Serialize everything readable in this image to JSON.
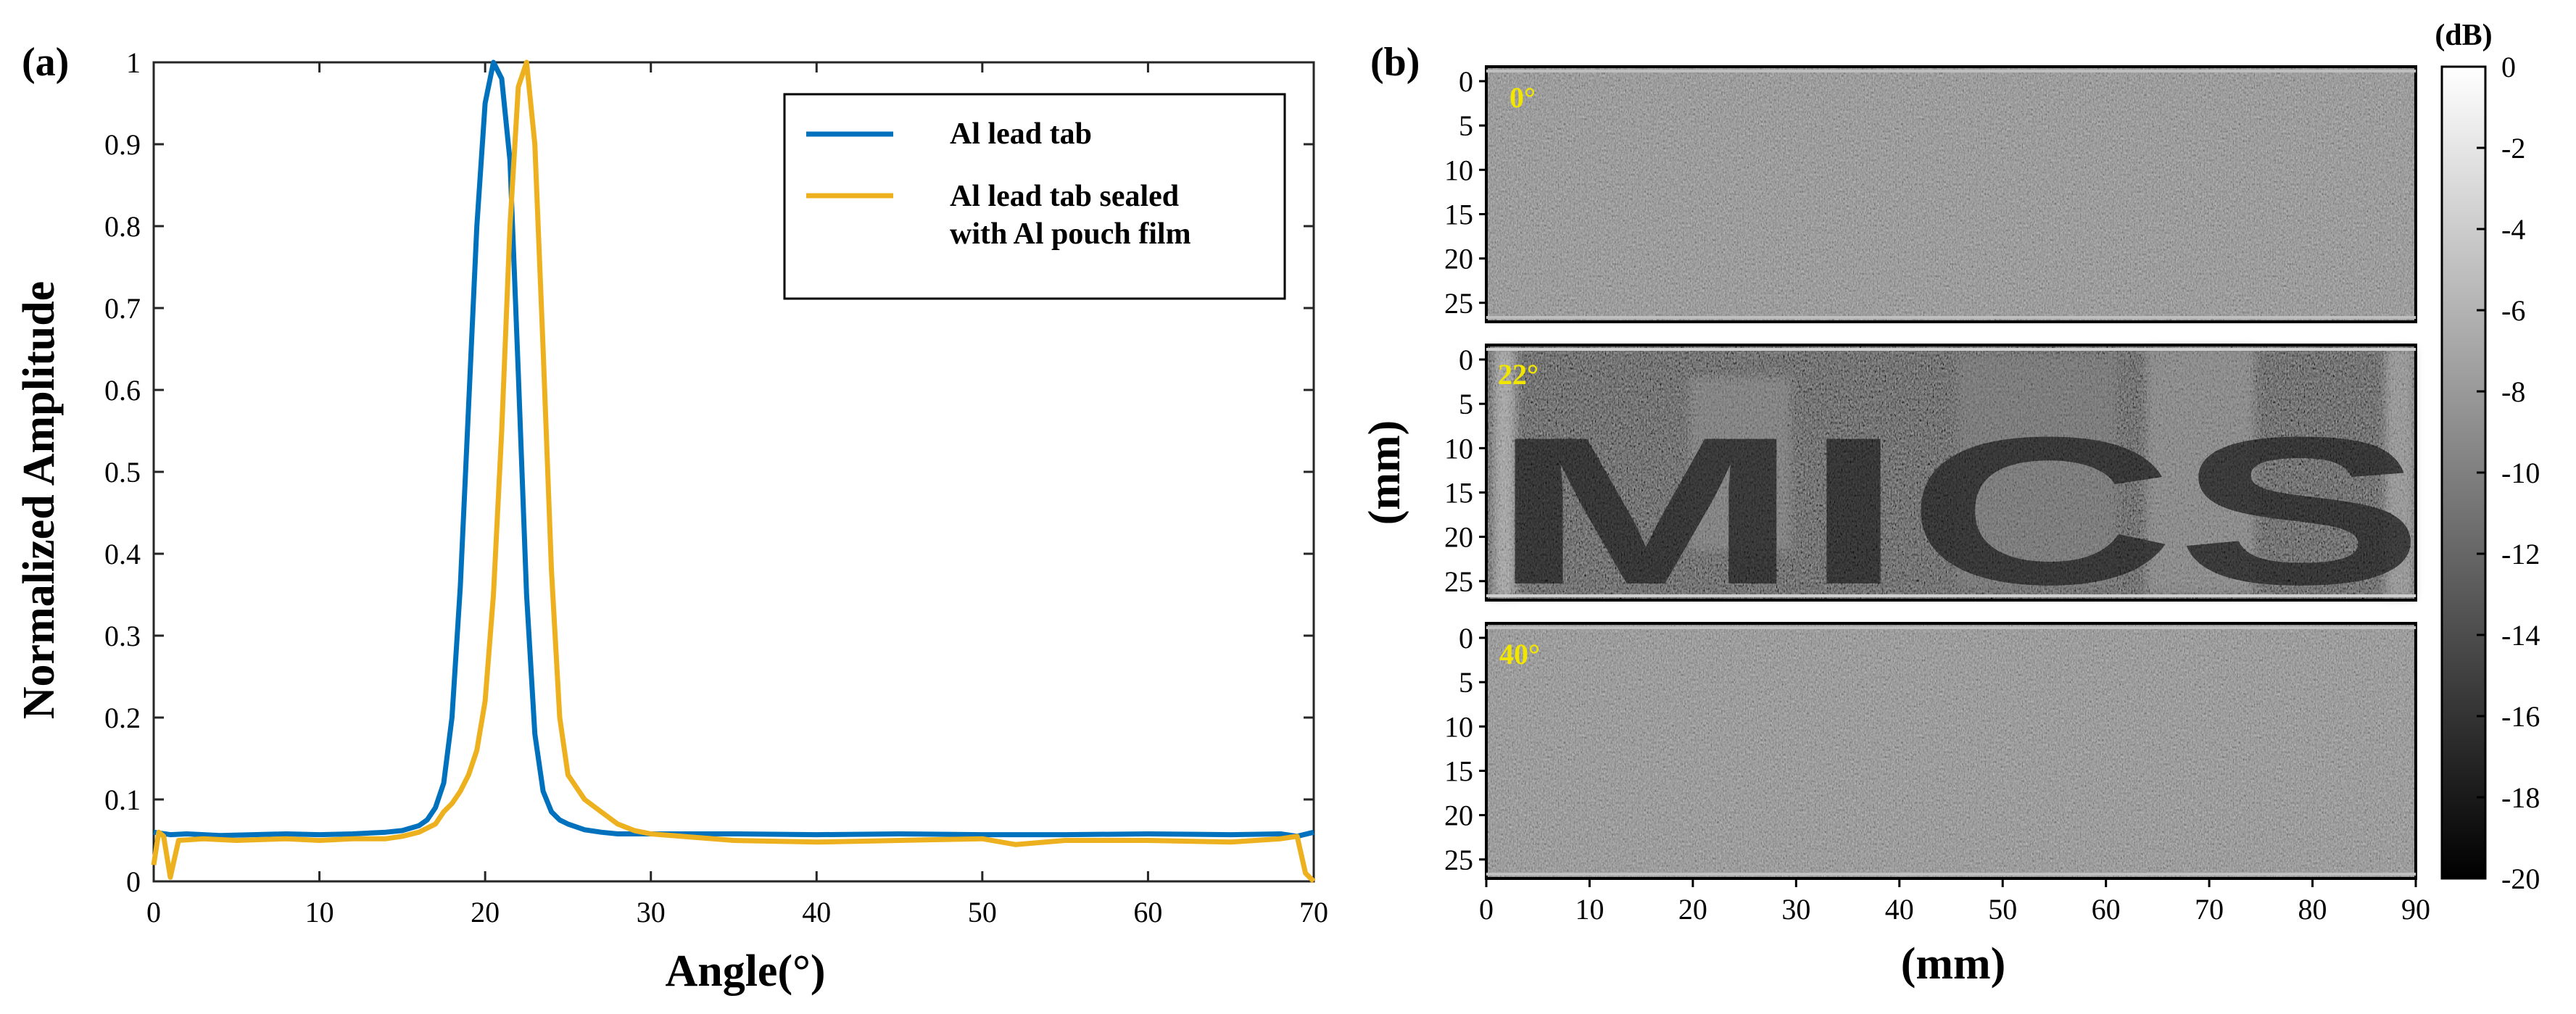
{
  "chart_data": [
    {
      "panel": "(a)",
      "type": "line",
      "xlabel": "Angle(°)",
      "ylabel": "Normalized Amplitude",
      "xlim": [
        0,
        70
      ],
      "ylim": [
        0,
        1
      ],
      "xticks": [
        0,
        10,
        20,
        30,
        40,
        50,
        60,
        70
      ],
      "yticks": [
        0,
        0.1,
        0.2,
        0.3,
        0.4,
        0.5,
        0.6,
        0.7,
        0.8,
        0.9,
        1
      ],
      "ytick_labels": [
        "0",
        "0.1",
        "0.2",
        "0.3",
        "0.4",
        "0.5",
        "0.6",
        "0.7",
        "0.8",
        "0.9",
        "1"
      ],
      "legend": "top-right",
      "series": [
        {
          "name": "Al lead tab",
          "color": "#0072BD",
          "x": [
            0,
            1,
            2,
            4,
            6,
            8,
            10,
            12,
            14,
            15,
            16,
            16.5,
            17,
            17.5,
            18,
            18.5,
            19,
            19.5,
            20,
            20.5,
            21,
            21.5,
            22,
            22.5,
            23,
            23.5,
            24,
            24.5,
            25,
            26,
            27,
            28,
            30,
            35,
            40,
            45,
            50,
            55,
            60,
            65,
            68,
            69,
            70
          ],
          "y": [
            0.06,
            0.057,
            0.058,
            0.056,
            0.057,
            0.058,
            0.057,
            0.058,
            0.06,
            0.062,
            0.068,
            0.075,
            0.09,
            0.12,
            0.2,
            0.36,
            0.58,
            0.8,
            0.95,
            1.0,
            0.98,
            0.88,
            0.62,
            0.35,
            0.18,
            0.11,
            0.085,
            0.075,
            0.07,
            0.063,
            0.06,
            0.058,
            0.058,
            0.058,
            0.057,
            0.058,
            0.057,
            0.057,
            0.058,
            0.057,
            0.058,
            0.055,
            0.06
          ]
        },
        {
          "name": "Al lead tab sealed\nwith Al pouch film",
          "color": "#EDB120",
          "x": [
            0,
            0.3,
            0.6,
            1,
            1.5,
            3,
            5,
            8,
            10,
            12,
            14,
            15,
            16,
            17,
            17.5,
            18,
            18.5,
            19,
            19.5,
            20,
            20.5,
            21,
            21.5,
            22,
            22.5,
            23,
            23.5,
            24,
            24.5,
            25,
            26,
            27,
            28,
            29,
            30,
            35,
            40,
            45,
            50,
            52,
            55,
            60,
            65,
            68,
            69,
            69.5,
            70
          ],
          "y": [
            0.02,
            0.06,
            0.055,
            0.005,
            0.05,
            0.052,
            0.05,
            0.052,
            0.05,
            0.052,
            0.052,
            0.055,
            0.06,
            0.07,
            0.085,
            0.095,
            0.11,
            0.13,
            0.16,
            0.22,
            0.35,
            0.55,
            0.8,
            0.97,
            1.0,
            0.9,
            0.65,
            0.38,
            0.2,
            0.13,
            0.1,
            0.085,
            0.07,
            0.062,
            0.058,
            0.05,
            0.048,
            0.05,
            0.052,
            0.045,
            0.05,
            0.05,
            0.048,
            0.052,
            0.055,
            0.01,
            0.0
          ]
        }
      ]
    },
    {
      "panel": "(b)",
      "type": "heatmap",
      "subplots": [
        {
          "angle_label": "0°",
          "image_text": ""
        },
        {
          "angle_label": "22°",
          "image_text": "MICS"
        },
        {
          "angle_label": "40°",
          "image_text": ""
        }
      ],
      "xlabel": "(mm)",
      "ylabel": "(mm)",
      "xlim": [
        0,
        90
      ],
      "ylim": [
        0,
        26
      ],
      "xticks": [
        0,
        10,
        20,
        30,
        40,
        50,
        60,
        70,
        80,
        90
      ],
      "yticks": [
        0,
        5,
        10,
        15,
        20,
        25
      ],
      "colorbar": {
        "label": "(dB)",
        "range": [
          -20,
          0
        ],
        "ticks": [
          0,
          -2,
          -4,
          -6,
          -8,
          -10,
          -12,
          -14,
          -16,
          -18,
          -20
        ],
        "colormap": "gray"
      }
    }
  ]
}
